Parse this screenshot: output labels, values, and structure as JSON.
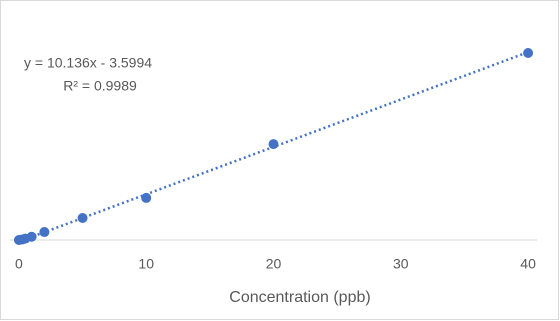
{
  "chart_data": {
    "type": "scatter",
    "x_label": "Concentration (ppb)",
    "x": [
      0,
      0.25,
      0.5,
      1,
      2,
      5,
      10,
      20,
      40
    ],
    "values": [
      0,
      1,
      3,
      7,
      17,
      47,
      90,
      205,
      400
    ],
    "color": "#4472c4",
    "xlim": [
      -0.7,
      40.7
    ],
    "xticks": [
      0,
      10,
      20,
      30,
      40
    ],
    "ylim": [
      0,
      450
    ],
    "trendline": {
      "equation": "y = 10.136x - 3.5994",
      "r_squared": "R² = 0.9989",
      "slope": 10.136,
      "intercept": -3.5994,
      "style": "dotted"
    }
  }
}
